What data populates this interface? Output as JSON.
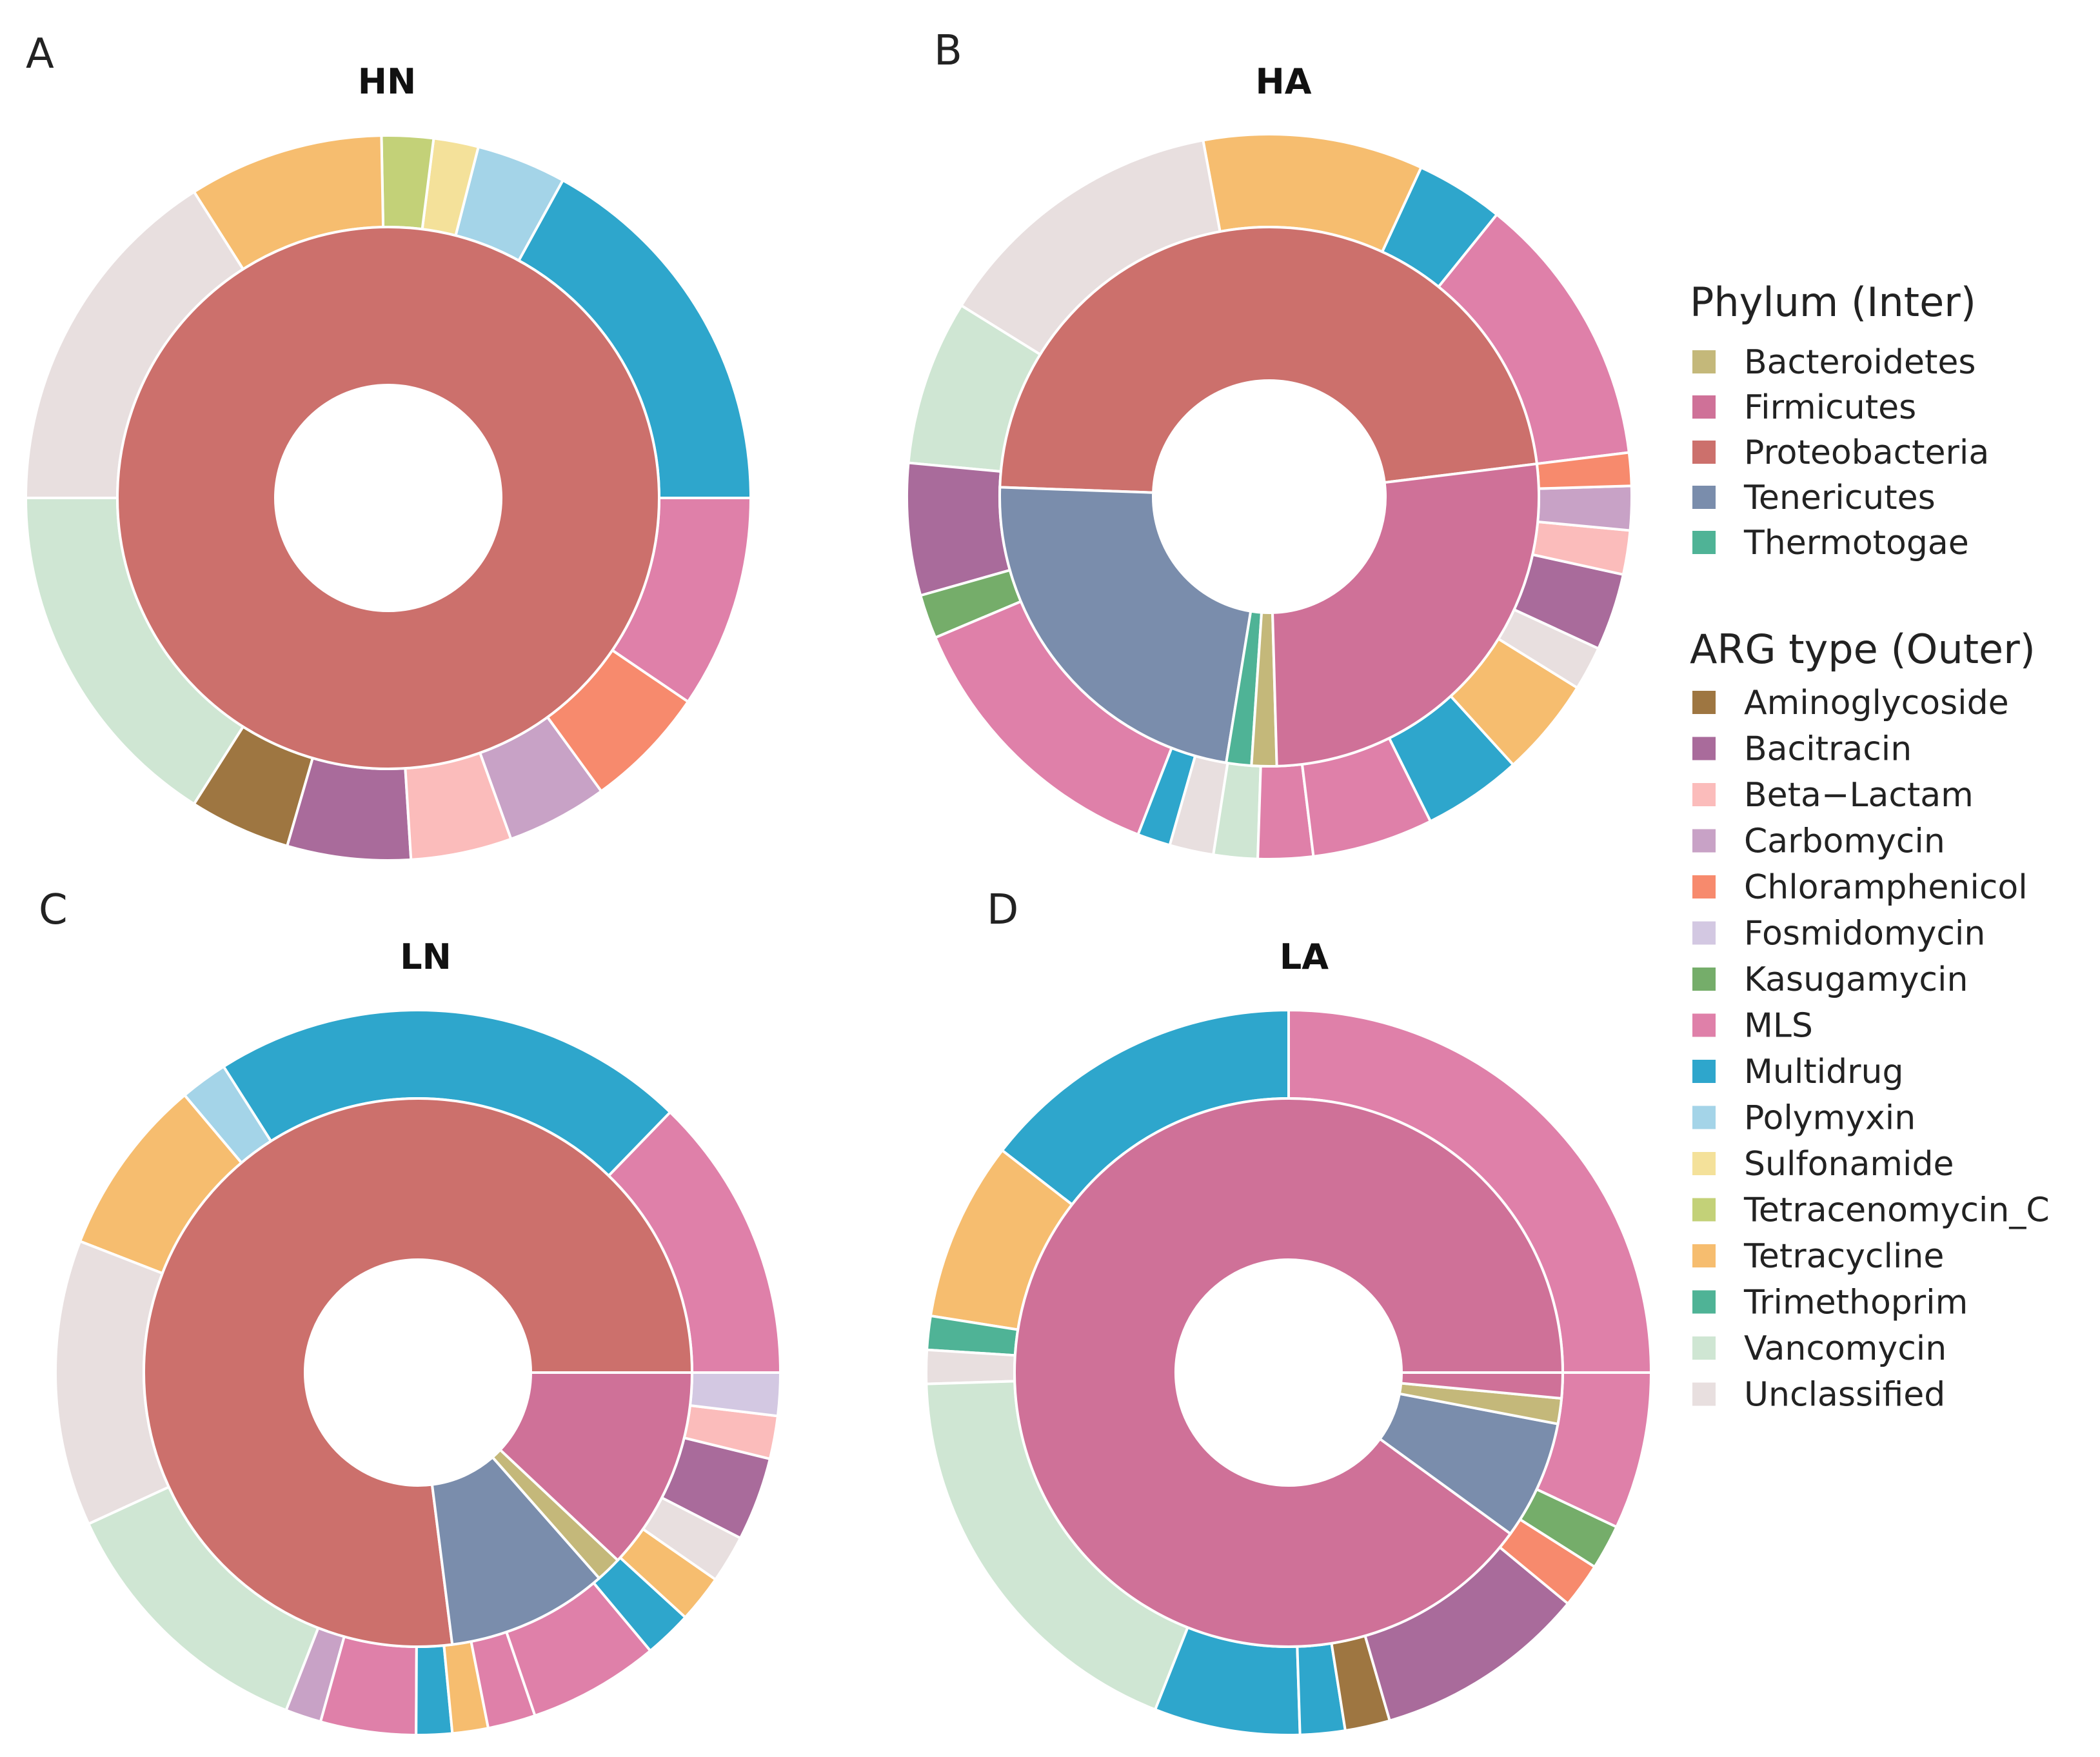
{
  "chart_data": {
    "type": "sunburst",
    "legend_phylum": {
      "title": "Phylum (Inter)",
      "items": [
        {
          "name": "Bacteroidetes",
          "color": "#c4b87a"
        },
        {
          "name": "Firmicutes",
          "color": "#cf7198"
        },
        {
          "name": "Proteobacteria",
          "color": "#cc706c"
        },
        {
          "name": "Tenericutes",
          "color": "#7a8dac"
        },
        {
          "name": "Thermotogae",
          "color": "#4fb396"
        }
      ]
    },
    "legend_arg": {
      "title": "ARG type (Outer)",
      "items": [
        {
          "name": "Aminoglycoside",
          "color": "#9e7641"
        },
        {
          "name": "Bacitracin",
          "color": "#a96b9b"
        },
        {
          "name": "Beta−Lactam",
          "color": "#fbbcbb"
        },
        {
          "name": "Carbomycin",
          "color": "#c8a2c6"
        },
        {
          "name": "Chloramphenicol",
          "color": "#f78a6d"
        },
        {
          "name": "Fosmidomycin",
          "color": "#d3c8e2"
        },
        {
          "name": "Kasugamycin",
          "color": "#75ad6a"
        },
        {
          "name": "MLS",
          "color": "#df80a9"
        },
        {
          "name": "Multidrug",
          "color": "#2ea6cc"
        },
        {
          "name": "Polymyxin",
          "color": "#a4d4e8"
        },
        {
          "name": "Sulfonamide",
          "color": "#f4e19a"
        },
        {
          "name": "Tetracenomycin_C",
          "color": "#c3d178"
        },
        {
          "name": "Tetracycline",
          "color": "#f6bd6f"
        },
        {
          "name": "Trimethoprim",
          "color": "#4fb396"
        },
        {
          "name": "Vancomycin",
          "color": "#cfe6d3"
        },
        {
          "name": "Unclassified",
          "color": "#e8dfdf"
        }
      ]
    },
    "panels": [
      {
        "letter": "A",
        "title": "HN",
        "inner": [
          {
            "phylum": "Proteobacteria",
            "value": 100
          }
        ],
        "outer": [
          {
            "arg": "Multidrug",
            "value": 17.0
          },
          {
            "arg": "Polymyxin",
            "value": 4.0
          },
          {
            "arg": "Sulfonamide",
            "value": 2.0
          },
          {
            "arg": "Tetracenomycin_C",
            "value": 2.3
          },
          {
            "arg": "Tetracycline",
            "value": 8.7
          },
          {
            "arg": "Unclassified",
            "value": 16.0
          },
          {
            "arg": "Vancomycin",
            "value": 16.0
          },
          {
            "arg": "Aminoglycoside",
            "value": 4.5
          },
          {
            "arg": "Bacitracin",
            "value": 5.5
          },
          {
            "arg": "Beta−Lactam",
            "value": 4.5
          },
          {
            "arg": "Carbomycin",
            "value": 4.5
          },
          {
            "arg": "Chloramphenicol",
            "value": 5.5
          },
          {
            "arg": "MLS",
            "value": 9.5
          }
        ]
      },
      {
        "letter": "B",
        "title": "HA",
        "inner": [
          {
            "phylum": "Proteobacteria",
            "value": 47.5
          },
          {
            "phylum": "Tenericutes",
            "value": 23.0
          },
          {
            "phylum": "Thermotogae",
            "value": 1.5
          },
          {
            "phylum": "Bacteroidetes",
            "value": 1.5
          },
          {
            "phylum": "Firmicutes",
            "value": 26.5
          }
        ],
        "outer": [
          {
            "arg": "MLS",
            "value": 12.5
          },
          {
            "arg": "Multidrug",
            "value": 4.0
          },
          {
            "arg": "Tetracycline",
            "value": 10.0
          },
          {
            "arg": "Unclassified",
            "value": 13.5
          },
          {
            "arg": "Vancomycin",
            "value": 7.5
          },
          {
            "arg": "Bacitracin",
            "value": 6.0
          },
          {
            "arg": "Kasugamycin",
            "value": 2.0
          },
          {
            "arg": "MLS",
            "value": 13.0
          },
          {
            "arg": "Multidrug",
            "value": 1.5
          },
          {
            "arg": "Unclassified",
            "value": 2.0
          },
          {
            "arg": "Vancomycin",
            "value": 2.0
          },
          {
            "arg": "MLS",
            "value": 2.5
          },
          {
            "arg": "MLS",
            "value": 5.5
          },
          {
            "arg": "Multidrug",
            "value": 4.5
          },
          {
            "arg": "Tetracycline",
            "value": 4.5
          },
          {
            "arg": "Unclassified",
            "value": 2.0
          },
          {
            "arg": "Bacitracin",
            "value": 3.5
          },
          {
            "arg": "Beta−Lactam",
            "value": 2.0
          },
          {
            "arg": "Carbomycin",
            "value": 2.0
          },
          {
            "arg": "Chloramphenicol",
            "value": 1.5
          }
        ]
      },
      {
        "letter": "C",
        "title": "LN",
        "inner": [
          {
            "phylum": "Proteobacteria",
            "value": 77.0
          },
          {
            "phylum": "Tenericutes",
            "value": 9.5
          },
          {
            "phylum": "Bacteroidetes",
            "value": 1.5
          },
          {
            "phylum": "Firmicutes",
            "value": 12.0
          }
        ],
        "outer": [
          {
            "arg": "MLS",
            "value": 12.0
          },
          {
            "arg": "Multidrug",
            "value": 20.0
          },
          {
            "arg": "Polymyxin",
            "value": 2.0
          },
          {
            "arg": "Tetracycline",
            "value": 7.5
          },
          {
            "arg": "Unclassified",
            "value": 12.0
          },
          {
            "arg": "Vancomycin",
            "value": 11.5
          },
          {
            "arg": "Carbomycin",
            "value": 1.5
          },
          {
            "arg": "MLS",
            "value": 4.0
          },
          {
            "arg": "Multidrug",
            "value": 1.5
          },
          {
            "arg": "Tetracycline",
            "value": 1.5
          },
          {
            "arg": "MLS",
            "value": 2.0
          },
          {
            "arg": "MLS",
            "value": 5.5
          },
          {
            "arg": "Multidrug",
            "value": 2.0
          },
          {
            "arg": "Tetracycline",
            "value": 2.0
          },
          {
            "arg": "Unclassified",
            "value": 2.0
          },
          {
            "arg": "Bacitracin",
            "value": 3.5
          },
          {
            "arg": "Beta−Lactam",
            "value": 1.8
          },
          {
            "arg": "Fosmidomycin",
            "value": 1.8
          }
        ]
      },
      {
        "letter": "D",
        "title": "LA",
        "inner": [
          {
            "phylum": "Firmicutes",
            "value": 90.0
          },
          {
            "phylum": "Tenericutes",
            "value": 7.0
          },
          {
            "phylum": "Bacteroidetes",
            "value": 1.5
          },
          {
            "phylum": "Firmicutes",
            "value": 1.5
          }
        ],
        "outer": [
          {
            "arg": "MLS",
            "value": 25.0
          },
          {
            "arg": "Multidrug",
            "value": 14.5
          },
          {
            "arg": "Tetracycline",
            "value": 8.0
          },
          {
            "arg": "Trimethoprim",
            "value": 1.5
          },
          {
            "arg": "Unclassified",
            "value": 1.5
          },
          {
            "arg": "Vancomycin",
            "value": 18.5
          },
          {
            "arg": "Multidrug",
            "value": 6.5
          },
          {
            "arg": "Multidrug",
            "value": 2.0
          },
          {
            "arg": "Aminoglycoside",
            "value": 2.0
          },
          {
            "arg": "Bacitracin",
            "value": 9.5
          },
          {
            "arg": "Chloramphenicol",
            "value": 2.0
          },
          {
            "arg": "Kasugamycin",
            "value": 2.0
          },
          {
            "arg": "MLS",
            "value": 7.0
          }
        ]
      }
    ]
  }
}
